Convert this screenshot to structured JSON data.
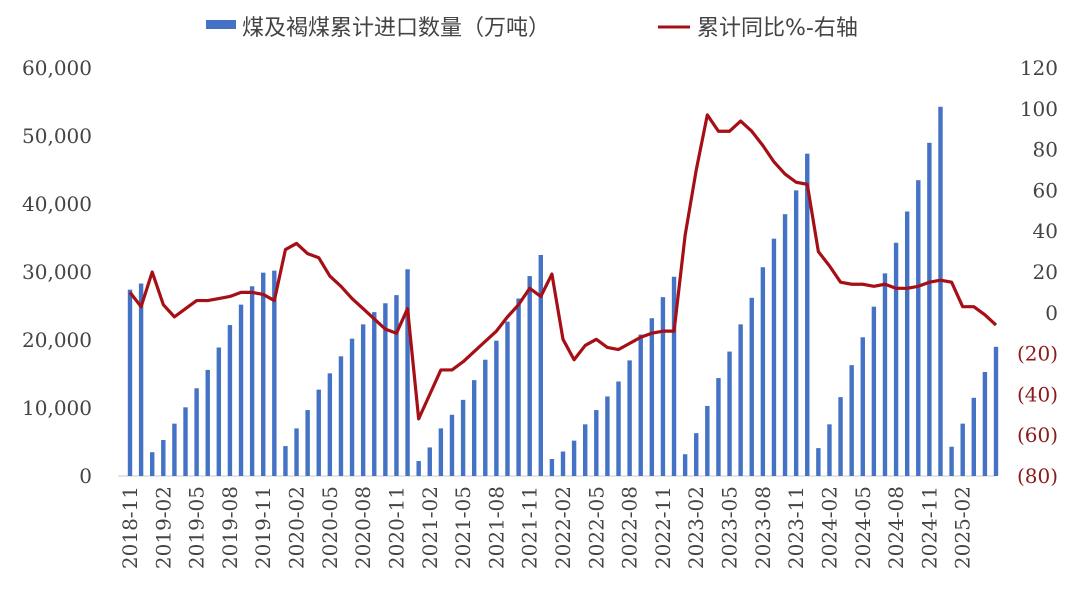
{
  "chart_data": {
    "type": "bar+line",
    "legend": {
      "bar_label": "煤及褐煤累计进口数量（万吨）",
      "line_label": "累计同比%-右轴"
    },
    "left_axis": {
      "ylim": [
        0,
        60000
      ],
      "ticks": [
        0,
        10000,
        20000,
        30000,
        40000,
        50000,
        60000
      ],
      "tick_labels": [
        "0",
        "10,000",
        "20,000",
        "30,000",
        "40,000",
        "50,000",
        "60,000"
      ]
    },
    "right_axis": {
      "ylim": [
        -80,
        120
      ],
      "ticks": [
        120,
        100,
        80,
        60,
        40,
        20,
        0,
        -20,
        -40,
        -60,
        -80
      ],
      "tick_labels": [
        "120",
        "100",
        "80",
        "60",
        "40",
        "20",
        "0",
        "(20)",
        "(40)",
        "(60)",
        "(80)"
      ],
      "positive_color": "#444444",
      "negative_color": "#8b1a1a"
    },
    "x_tick_labels": [
      "2018-11",
      "2019-02",
      "2019-05",
      "2019-08",
      "2019-11",
      "2020-02",
      "2020-05",
      "2020-08",
      "2020-11",
      "2021-02",
      "2021-05",
      "2021-08",
      "2021-11",
      "2022-02",
      "2022-05",
      "2022-08",
      "2022-11",
      "2023-02",
      "2023-05",
      "2023-08",
      "2023-11",
      "2024-02",
      "2024-05",
      "2024-08",
      "2024-11",
      "2025-02"
    ],
    "months": [
      "2018-11",
      "2018-12",
      "2019-01",
      "2019-02",
      "2019-03",
      "2019-04",
      "2019-05",
      "2019-06",
      "2019-07",
      "2019-08",
      "2019-09",
      "2019-10",
      "2019-11",
      "2019-12",
      "2020-01",
      "2020-02",
      "2020-03",
      "2020-04",
      "2020-05",
      "2020-06",
      "2020-07",
      "2020-08",
      "2020-09",
      "2020-10",
      "2020-11",
      "2020-12",
      "2021-01",
      "2021-02",
      "2021-03",
      "2021-04",
      "2021-05",
      "2021-06",
      "2021-07",
      "2021-08",
      "2021-09",
      "2021-10",
      "2021-11",
      "2021-12",
      "2022-01",
      "2022-02",
      "2022-03",
      "2022-04",
      "2022-05",
      "2022-06",
      "2022-07",
      "2022-08",
      "2022-09",
      "2022-10",
      "2022-11",
      "2022-12",
      "2023-01",
      "2023-02",
      "2023-03",
      "2023-04",
      "2023-05",
      "2023-06",
      "2023-07",
      "2023-08",
      "2023-09",
      "2023-10",
      "2023-11",
      "2023-12",
      "2024-01",
      "2024-02",
      "2024-03",
      "2024-04",
      "2024-05",
      "2024-06",
      "2024-07",
      "2024-08",
      "2024-09",
      "2024-10",
      "2024-11",
      "2024-12",
      "2025-01",
      "2025-02",
      "2025-03",
      "2025-04",
      "2025-05"
    ],
    "series": [
      {
        "name": "煤及褐煤累计进口数量（万吨）",
        "type": "bar",
        "axis": "left",
        "color": "#4472c4",
        "values": [
          27400,
          28300,
          3500,
          5300,
          7700,
          10100,
          12900,
          15600,
          18900,
          22200,
          25200,
          27900,
          29900,
          30200,
          4400,
          7000,
          9700,
          12700,
          15100,
          17600,
          20200,
          22300,
          24100,
          25400,
          26600,
          30400,
          2200,
          4200,
          7000,
          9000,
          11200,
          14100,
          17100,
          19900,
          22700,
          26100,
          29400,
          32500,
          2500,
          3600,
          5200,
          7600,
          9700,
          11700,
          13900,
          17000,
          20800,
          23200,
          26300,
          29300,
          3200,
          6300,
          10300,
          14400,
          18300,
          22300,
          26200,
          30700,
          34900,
          38500,
          42000,
          47400,
          4100,
          7600,
          11600,
          16300,
          20400,
          24900,
          29800,
          34300,
          38900,
          43500,
          49000,
          54300,
          4300,
          7700,
          11500,
          15300,
          19000
        ]
      },
      {
        "name": "累计同比%-右轴",
        "type": "line",
        "axis": "right",
        "color": "#a50f15",
        "values": [
          10,
          3,
          20,
          4,
          -2,
          2,
          6,
          6,
          7,
          8,
          10,
          10,
          9,
          6,
          31,
          34,
          29,
          27,
          18,
          13,
          7,
          2,
          -3,
          -8,
          -10,
          2,
          -52,
          -40,
          -28,
          -28,
          -24,
          -19,
          -14,
          -9,
          -2,
          4,
          12,
          8,
          19,
          -13,
          -23,
          -16,
          -13,
          -17,
          -18,
          -15,
          -12,
          -10,
          -9,
          -9,
          38,
          70,
          97,
          89,
          89,
          94,
          89,
          82,
          74,
          68,
          64,
          63,
          30,
          23,
          15,
          14,
          14,
          13,
          14,
          12,
          12,
          13,
          15,
          16,
          15,
          3,
          3,
          -1,
          -6
        ]
      }
    ]
  }
}
